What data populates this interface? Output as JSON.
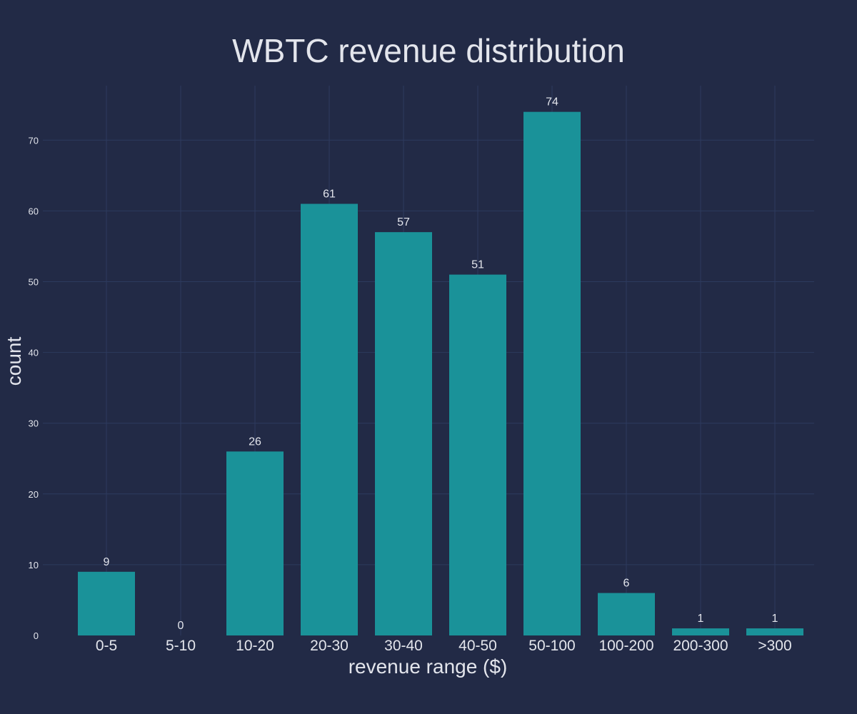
{
  "chart_data": {
    "type": "bar",
    "title": "WBTC revenue distribution",
    "xlabel": "revenue range ($)",
    "ylabel": "count",
    "categories": [
      "0-5",
      "5-10",
      "10-20",
      "20-30",
      "30-40",
      "40-50",
      "50-100",
      "100-200",
      "200-300",
      ">300"
    ],
    "values": [
      9,
      0,
      26,
      61,
      57,
      51,
      74,
      6,
      1,
      1
    ],
    "data_labels": [
      "9",
      "0",
      "26",
      "61",
      "57",
      "51",
      "74",
      "6",
      "1",
      "1"
    ],
    "y_ticks": [
      0,
      10,
      20,
      30,
      40,
      50,
      60,
      70
    ],
    "y_tick_labels": [
      "0",
      "10",
      "20",
      "30",
      "40",
      "50",
      "60",
      "70"
    ],
    "ylim": [
      0,
      77.7
    ],
    "grid": true,
    "legend": "none",
    "colors": {
      "background": "#222a46",
      "bar": "#1a9299",
      "grid": "#2d3a5e",
      "text": "#e3e5ec"
    }
  }
}
